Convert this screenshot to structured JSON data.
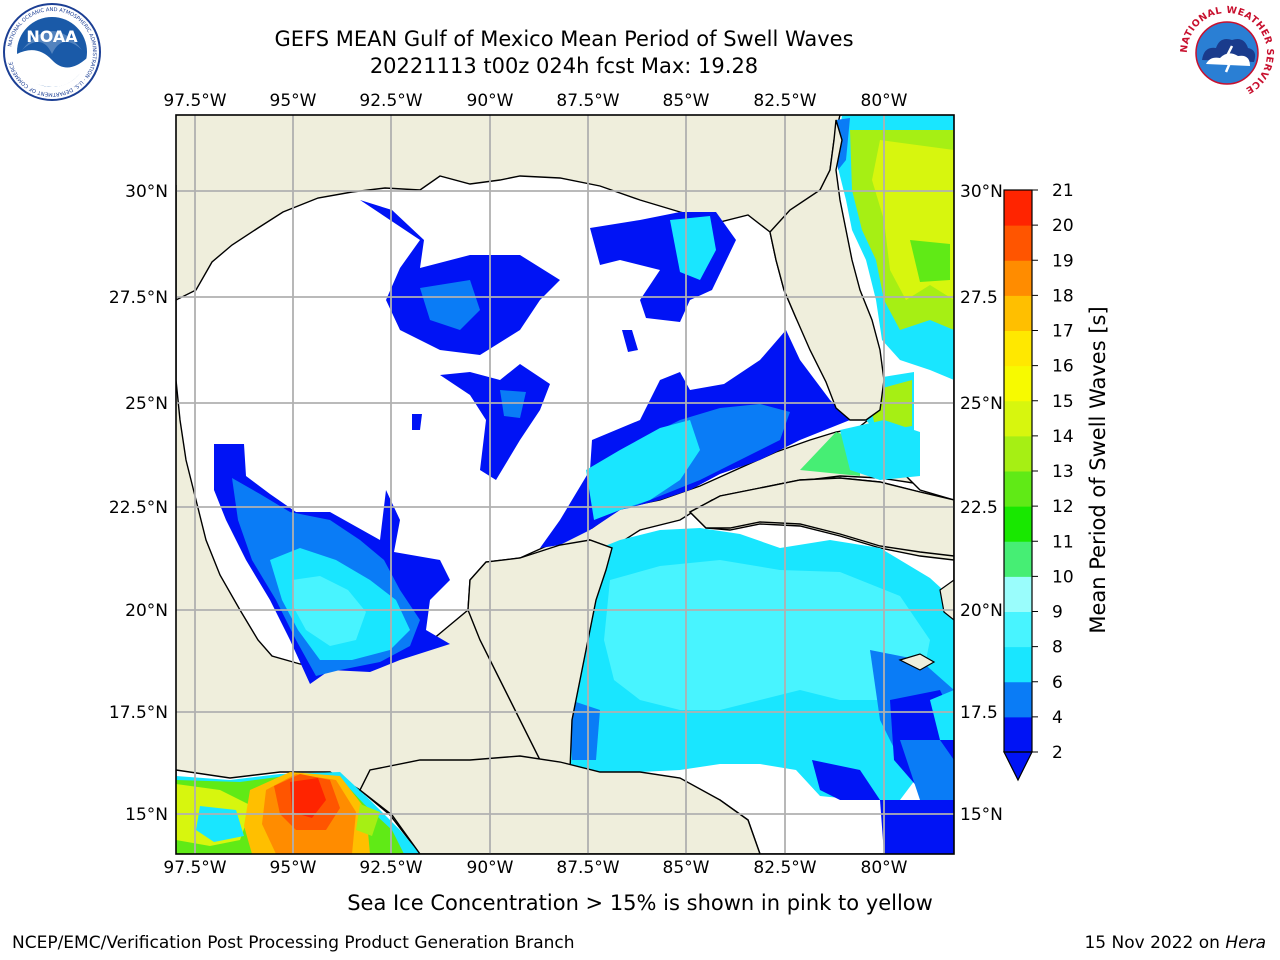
{
  "title_line1": "GEFS MEAN Gulf of Mexico Mean Period of Swell Waves",
  "title_line2": "20221113 t00z 024h fcst   Max: 19.28",
  "lon_labels": [
    "97.5°W",
    "95°W",
    "92.5°W",
    "90°W",
    "87.5°W",
    "85°W",
    "82.5°W",
    "80°W"
  ],
  "lat_labels_left": [
    "30°N",
    "27.5°N",
    "25°N",
    "22.5°N",
    "20°N",
    "17.5°N",
    "15°N"
  ],
  "lat_labels_right": [
    "30°N",
    "27.5",
    "25°N",
    "22.5",
    "20°N",
    "17.5",
    "15°N"
  ],
  "colorbar": {
    "label": "Mean Period of Swell Waves [s]",
    "ticks": [
      "2",
      "4",
      "6",
      "8",
      "9",
      "10",
      "11",
      "12",
      "13",
      "14",
      "15",
      "16",
      "17",
      "18",
      "19",
      "20",
      "21"
    ],
    "colors": [
      "#0013f5",
      "#0a7cf6",
      "#19e6ff",
      "#48f4ff",
      "#9afdfc",
      "#46ee74",
      "#18e800",
      "#60ea16",
      "#a6ef14",
      "#d7f60e",
      "#f7fa00",
      "#ffe800",
      "#ffbf00",
      "#ff8c00",
      "#ff5500",
      "#ff2400"
    ]
  },
  "note": "Sea Ice Concentration > 15% is shown in pink to yellow",
  "footer_left": "NCEP/EMC/Verification Post Processing Product Generation Branch",
  "footer_date": "15 Nov 2022 on ",
  "footer_machine": "Hera",
  "logos": {
    "noaa_text": "NOAA",
    "noaa_ring_text": "NATIONAL OCEANIC AND ATMOSPHERIC ADMINISTRATION · U.S. DEPARTMENT OF COMMERCE",
    "nws_ring_text": "NATIONAL WEATHER SERVICE"
  },
  "colors": {
    "land": "#efeedc",
    "ocean_no_data": "#ffffff",
    "grid": "#b0b0b0"
  }
}
